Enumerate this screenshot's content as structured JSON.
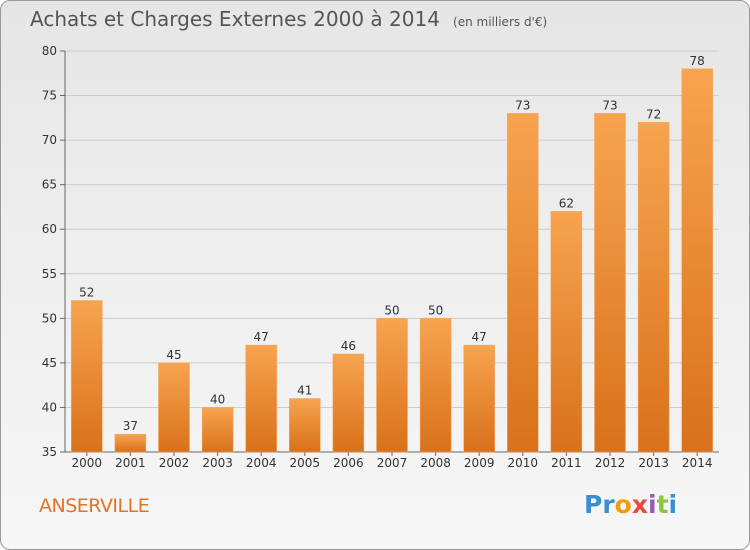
{
  "title": "Achats et Charges Externes 2000 à 2014",
  "unit": "(en milliers d'€)",
  "commune": "ANSERVILLE",
  "logo": "Proxiti",
  "colors": {
    "bar_light": "#f7a44f",
    "bar_dark": "#d9711b",
    "grid": "#cccccc"
  },
  "chart_data": {
    "type": "bar",
    "title": "Achats et Charges Externes 2000 à 2014",
    "xlabel": "",
    "ylabel": "",
    "ylim": [
      35,
      80
    ],
    "yticks": [
      35,
      40,
      45,
      50,
      55,
      60,
      65,
      70,
      75,
      80
    ],
    "grid": true,
    "categories": [
      "2000",
      "2001",
      "2002",
      "2003",
      "2004",
      "2005",
      "2006",
      "2007",
      "2008",
      "2009",
      "2010",
      "2011",
      "2012",
      "2013",
      "2014"
    ],
    "values": [
      52,
      37,
      45,
      40,
      47,
      41,
      46,
      50,
      50,
      47,
      73,
      62,
      73,
      72,
      78
    ]
  }
}
